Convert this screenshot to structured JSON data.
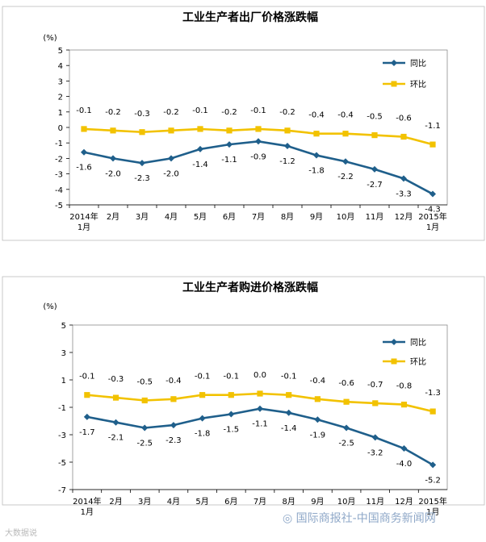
{
  "chart_data": [
    {
      "type": "line",
      "title": "工业生产者出厂价格涨跌幅",
      "unit": "(%)",
      "ylim": [
        -5,
        5
      ],
      "yticks": [
        "5",
        "4",
        "3",
        "2",
        "1",
        "0",
        "-1",
        "-2",
        "-3",
        "-4",
        "-5"
      ],
      "categories": [
        "2014年\n1月",
        "2月",
        "3月",
        "4月",
        "5月",
        "6月",
        "7月",
        "8月",
        "9月",
        "10月",
        "11月",
        "12月",
        "2015年\n1月"
      ],
      "series": [
        {
          "name": "同比",
          "color": "#1f5f8b",
          "marker": "diamond",
          "values": [
            -1.6,
            -2.0,
            -2.3,
            -2.0,
            -1.4,
            -1.1,
            -0.9,
            -1.2,
            -1.8,
            -2.2,
            -2.7,
            -3.3,
            -4.3
          ]
        },
        {
          "name": "环比",
          "color": "#f2c200",
          "marker": "square",
          "values": [
            -0.1,
            -0.2,
            -0.3,
            -0.2,
            -0.1,
            -0.2,
            -0.1,
            -0.2,
            -0.4,
            -0.4,
            -0.5,
            -0.6,
            -1.1
          ]
        }
      ],
      "legend": "top-right",
      "grid": false
    },
    {
      "type": "line",
      "title": "工业生产者购进价格涨跌幅",
      "unit": "(%)",
      "ylim": [
        -7,
        5
      ],
      "yticks": [
        "5",
        "3",
        "1",
        "-1",
        "-3",
        "-5",
        "-7"
      ],
      "categories": [
        "2014年\n1月",
        "2月",
        "3月",
        "4月",
        "5月",
        "6月",
        "7月",
        "8月",
        "9月",
        "10月",
        "11月",
        "12月",
        "2015年\n1月"
      ],
      "series": [
        {
          "name": "同比",
          "color": "#1f5f8b",
          "marker": "diamond",
          "values": [
            -1.7,
            -2.1,
            -2.5,
            -2.3,
            -1.8,
            -1.5,
            -1.1,
            -1.4,
            -1.9,
            -2.5,
            -3.2,
            -4.0,
            -5.2
          ]
        },
        {
          "name": "环比",
          "color": "#f2c200",
          "marker": "square",
          "values": [
            -0.1,
            -0.3,
            -0.5,
            -0.4,
            -0.1,
            -0.1,
            0.0,
            -0.1,
            -0.4,
            -0.6,
            -0.7,
            -0.8,
            -1.3
          ]
        }
      ],
      "legend": "top-right",
      "grid": false
    }
  ],
  "watermark": {
    "footer": "国际商报社-中国商务新闻网",
    "corner": "大数据说"
  }
}
